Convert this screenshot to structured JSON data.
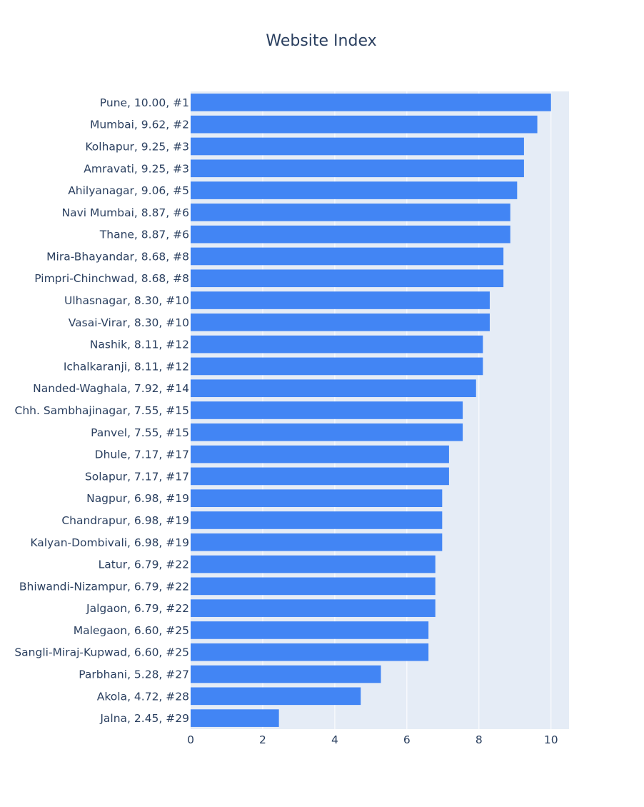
{
  "chart_data": {
    "type": "bar",
    "orientation": "horizontal",
    "title": "Website Index",
    "xlabel": "",
    "ylabel": "",
    "xlim": [
      0,
      10.5
    ],
    "xticks": [
      0,
      2,
      4,
      6,
      8,
      10
    ],
    "xtick_labels": [
      "0",
      "2",
      "4",
      "6",
      "8",
      "10"
    ],
    "grid": true,
    "bar_color": "#4285f4",
    "plot_bg": "#e5ecf6",
    "grid_color": "#ffffff",
    "categories": [
      "Pune, 10.00, #1",
      "Mumbai, 9.62, #2",
      "Kolhapur, 9.25, #3",
      "Amravati, 9.25, #3",
      "Ahilyanagar, 9.06, #5",
      "Navi Mumbai, 8.87, #6",
      "Thane, 8.87, #6",
      "Mira-Bhayandar, 8.68, #8",
      "Pimpri-Chinchwad, 8.68, #8",
      "Ulhasnagar, 8.30, #10",
      "Vasai-Virar, 8.30, #10",
      "Nashik, 8.11, #12",
      "Ichalkaranji, 8.11, #12",
      "Nanded-Waghala, 7.92, #14",
      "Chh. Sambhajinagar, 7.55, #15",
      "Panvel, 7.55, #15",
      "Dhule, 7.17, #17",
      "Solapur, 7.17, #17",
      "Nagpur, 6.98, #19",
      "Chandrapur, 6.98, #19",
      "Kalyan-Dombivali, 6.98, #19",
      "Latur, 6.79, #22",
      "Bhiwandi-Nizampur, 6.79, #22",
      "Jalgaon, 6.79, #22",
      "Malegaon, 6.60, #25",
      "Sangli-Miraj-Kupwad, 6.60, #25",
      "Parbhani, 5.28, #27",
      "Akola, 4.72, #28",
      "Jalna, 2.45, #29"
    ],
    "values": [
      10.0,
      9.62,
      9.25,
      9.25,
      9.06,
      8.87,
      8.87,
      8.68,
      8.68,
      8.3,
      8.3,
      8.11,
      8.11,
      7.92,
      7.55,
      7.55,
      7.17,
      7.17,
      6.98,
      6.98,
      6.98,
      6.79,
      6.79,
      6.79,
      6.6,
      6.6,
      5.28,
      4.72,
      2.45
    ]
  }
}
